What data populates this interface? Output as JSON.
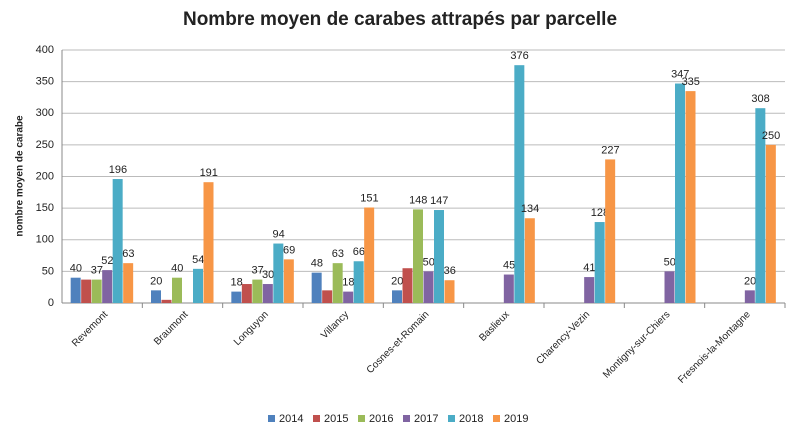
{
  "chart_data": {
    "type": "bar",
    "title": "Nombre moyen de carabes attrapés par parcelle",
    "y_label": "nombre moyen de carabe",
    "categories": [
      "Revemont",
      "Braumont",
      "Longuyon",
      "Villancy",
      "Cosnes-et-Romain",
      "Baslieux",
      "Charency-Vezin",
      "Montigny-sur-Chiers",
      "Fresnois-la-Montagne"
    ],
    "series": [
      {
        "name": "2014",
        "color": "#4f81bd",
        "values": [
          40,
          20,
          18,
          48,
          20,
          null,
          null,
          null,
          null
        ],
        "value_labels": [
          "40",
          "20",
          "18",
          "48",
          "20",
          null,
          null,
          null,
          null
        ]
      },
      {
        "name": "2015",
        "color": "#c0504d",
        "values": [
          37,
          5,
          30,
          20,
          55,
          null,
          null,
          null,
          null
        ],
        "value_labels": [
          null,
          null,
          null,
          null,
          null,
          null,
          null,
          null,
          null
        ]
      },
      {
        "name": "2016",
        "color": "#9bbb59",
        "values": [
          37,
          40,
          37,
          63,
          148,
          null,
          null,
          null,
          null
        ],
        "value_labels": [
          "37",
          "40",
          "37",
          "63",
          "148",
          null,
          null,
          null,
          null
        ]
      },
      {
        "name": "2017",
        "color": "#8064a2",
        "values": [
          52,
          null,
          30,
          18,
          50,
          45,
          41,
          50,
          20
        ],
        "value_labels": [
          "52",
          null,
          "30",
          "18",
          "50",
          "45",
          "41",
          "50",
          "20"
        ]
      },
      {
        "name": "2018",
        "color": "#4bacc6",
        "values": [
          196,
          54,
          94,
          66,
          147,
          376,
          128,
          347,
          308
        ],
        "value_labels": [
          "196",
          "54",
          "94",
          "66",
          "147",
          "376",
          "128",
          "347",
          "308"
        ]
      },
      {
        "name": "2019",
        "color": "#f79646",
        "values": [
          63,
          191,
          69,
          151,
          36,
          134,
          227,
          335,
          250
        ],
        "value_labels": [
          "63",
          "191",
          "69",
          "151",
          "36",
          "134",
          "227",
          "335",
          "250"
        ]
      }
    ],
    "ylim": [
      0,
      400
    ],
    "yticks": [
      0,
      50,
      100,
      150,
      200,
      250,
      300,
      350,
      400
    ],
    "grid": true,
    "legend": "bottom"
  }
}
